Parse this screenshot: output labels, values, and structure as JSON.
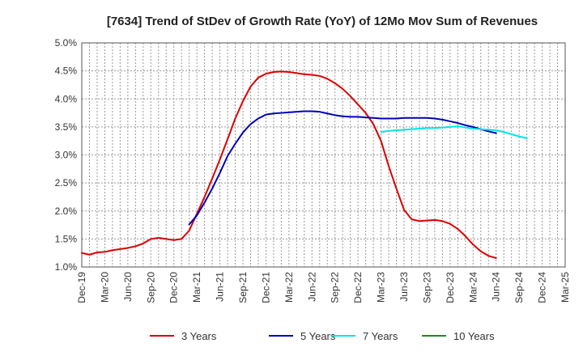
{
  "chart_data": {
    "type": "line",
    "title": "[7634]  Trend of StDev of Growth Rate (YoY) of 12Mo Mov Sum of Revenues",
    "xlabel": "",
    "ylabel": "",
    "ylim": [
      1.0,
      5.0
    ],
    "y_ticks": [
      1.0,
      1.5,
      2.0,
      2.5,
      3.0,
      3.5,
      4.0,
      4.5,
      5.0
    ],
    "y_tick_labels": [
      "1.0%",
      "1.5%",
      "2.0%",
      "2.5%",
      "3.0%",
      "3.5%",
      "4.0%",
      "4.5%",
      "5.0%"
    ],
    "x_tick_labels": [
      "Dec-19",
      "Mar-20",
      "Jun-20",
      "Sep-20",
      "Dec-20",
      "Mar-21",
      "Jun-21",
      "Sep-21",
      "Dec-21",
      "Mar-22",
      "Jun-22",
      "Sep-22",
      "Dec-22",
      "Mar-23",
      "Jun-23",
      "Sep-23",
      "Dec-23",
      "Mar-24",
      "Jun-24",
      "Sep-24",
      "Dec-24",
      "Mar-25"
    ],
    "months_start": "Dec-19",
    "month_count": 64,
    "grid": true,
    "legend_position": "bottom",
    "series": [
      {
        "name": "3 Years",
        "color": "#dd0000",
        "start_index": 0,
        "values": [
          1.25,
          1.22,
          1.26,
          1.27,
          1.3,
          1.32,
          1.34,
          1.37,
          1.42,
          1.5,
          1.52,
          1.5,
          1.48,
          1.5,
          1.65,
          1.95,
          2.25,
          2.58,
          2.92,
          3.28,
          3.65,
          3.96,
          4.22,
          4.38,
          4.45,
          4.48,
          4.49,
          4.48,
          4.46,
          4.44,
          4.43,
          4.41,
          4.36,
          4.28,
          4.18,
          4.05,
          3.9,
          3.75,
          3.55,
          3.25,
          2.8,
          2.4,
          2.02,
          1.85,
          1.82,
          1.83,
          1.84,
          1.82,
          1.77,
          1.68,
          1.55,
          1.4,
          1.28,
          1.2,
          1.16
        ]
      },
      {
        "name": "5 Years",
        "color": "#0000bb",
        "start_index": 14,
        "values": [
          1.76,
          1.92,
          2.15,
          2.4,
          2.68,
          2.98,
          3.2,
          3.4,
          3.55,
          3.65,
          3.72,
          3.74,
          3.75,
          3.76,
          3.77,
          3.78,
          3.78,
          3.77,
          3.74,
          3.71,
          3.69,
          3.68,
          3.68,
          3.67,
          3.66,
          3.65,
          3.65,
          3.65,
          3.66,
          3.66,
          3.66,
          3.66,
          3.65,
          3.63,
          3.6,
          3.57,
          3.53,
          3.5,
          3.46,
          3.42,
          3.39
        ]
      },
      {
        "name": "7 Years",
        "color": "#00e5e5",
        "start_index": 39,
        "values": [
          3.41,
          3.43,
          3.44,
          3.45,
          3.46,
          3.47,
          3.48,
          3.48,
          3.49,
          3.5,
          3.51,
          3.49,
          3.47,
          3.46,
          3.45,
          3.44,
          3.41,
          3.37,
          3.33,
          3.3
        ]
      },
      {
        "name": "10 Years",
        "color": "#228822",
        "start_index": 0,
        "values": []
      }
    ]
  }
}
